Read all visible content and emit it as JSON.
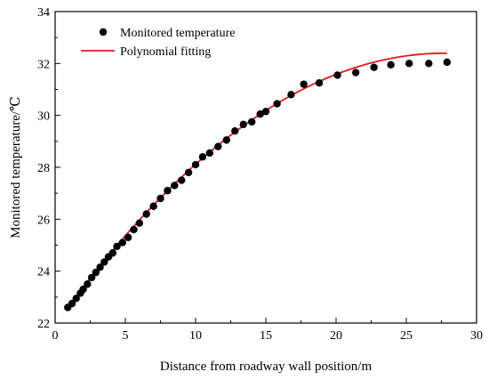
{
  "chart_data": {
    "type": "scatter",
    "title": "",
    "xlabel": "Distance from roadway wall position/m",
    "ylabel": "Monitored temperature/℃",
    "xlim": [
      0,
      30
    ],
    "ylim": [
      22,
      34
    ],
    "x_ticks": [
      "0",
      "5",
      "10",
      "15",
      "20",
      "25",
      "30"
    ],
    "y_ticks": [
      "22",
      "24",
      "26",
      "28",
      "30",
      "32",
      "34"
    ],
    "grid": false,
    "legend_position": "top-left",
    "series": [
      {
        "name": "Monitored temperature",
        "kind": "markers",
        "color": "#000000",
        "x": [
          0.9,
          1.2,
          1.5,
          1.8,
          2.0,
          2.3,
          2.6,
          2.9,
          3.2,
          3.5,
          3.8,
          4.1,
          4.4,
          4.8,
          5.2,
          5.6,
          6.0,
          6.5,
          7.0,
          7.5,
          8.0,
          8.5,
          9.0,
          9.5,
          10.0,
          10.5,
          11.0,
          11.6,
          12.2,
          12.8,
          13.4,
          14.0,
          14.6,
          15.0,
          15.8,
          16.8,
          17.7,
          18.8,
          20.1,
          21.4,
          22.7,
          23.9,
          25.2,
          26.6,
          27.9
        ],
        "y": [
          22.6,
          22.75,
          22.95,
          23.15,
          23.3,
          23.5,
          23.75,
          23.95,
          24.15,
          24.35,
          24.55,
          24.7,
          24.95,
          25.1,
          25.3,
          25.6,
          25.85,
          26.2,
          26.5,
          26.8,
          27.1,
          27.3,
          27.5,
          27.8,
          28.1,
          28.4,
          28.55,
          28.8,
          29.05,
          29.4,
          29.65,
          29.75,
          30.05,
          30.15,
          30.45,
          30.8,
          31.2,
          31.25,
          31.55,
          31.65,
          31.85,
          31.95,
          32.0,
          32.0,
          32.05
        ]
      },
      {
        "name": "Polynomial fitting",
        "kind": "line",
        "color": "#e31a1c",
        "coefficients": [
          21.93,
          0.7545,
          -0.0136
        ],
        "x_range": [
          0.9,
          27.9
        ]
      }
    ]
  }
}
